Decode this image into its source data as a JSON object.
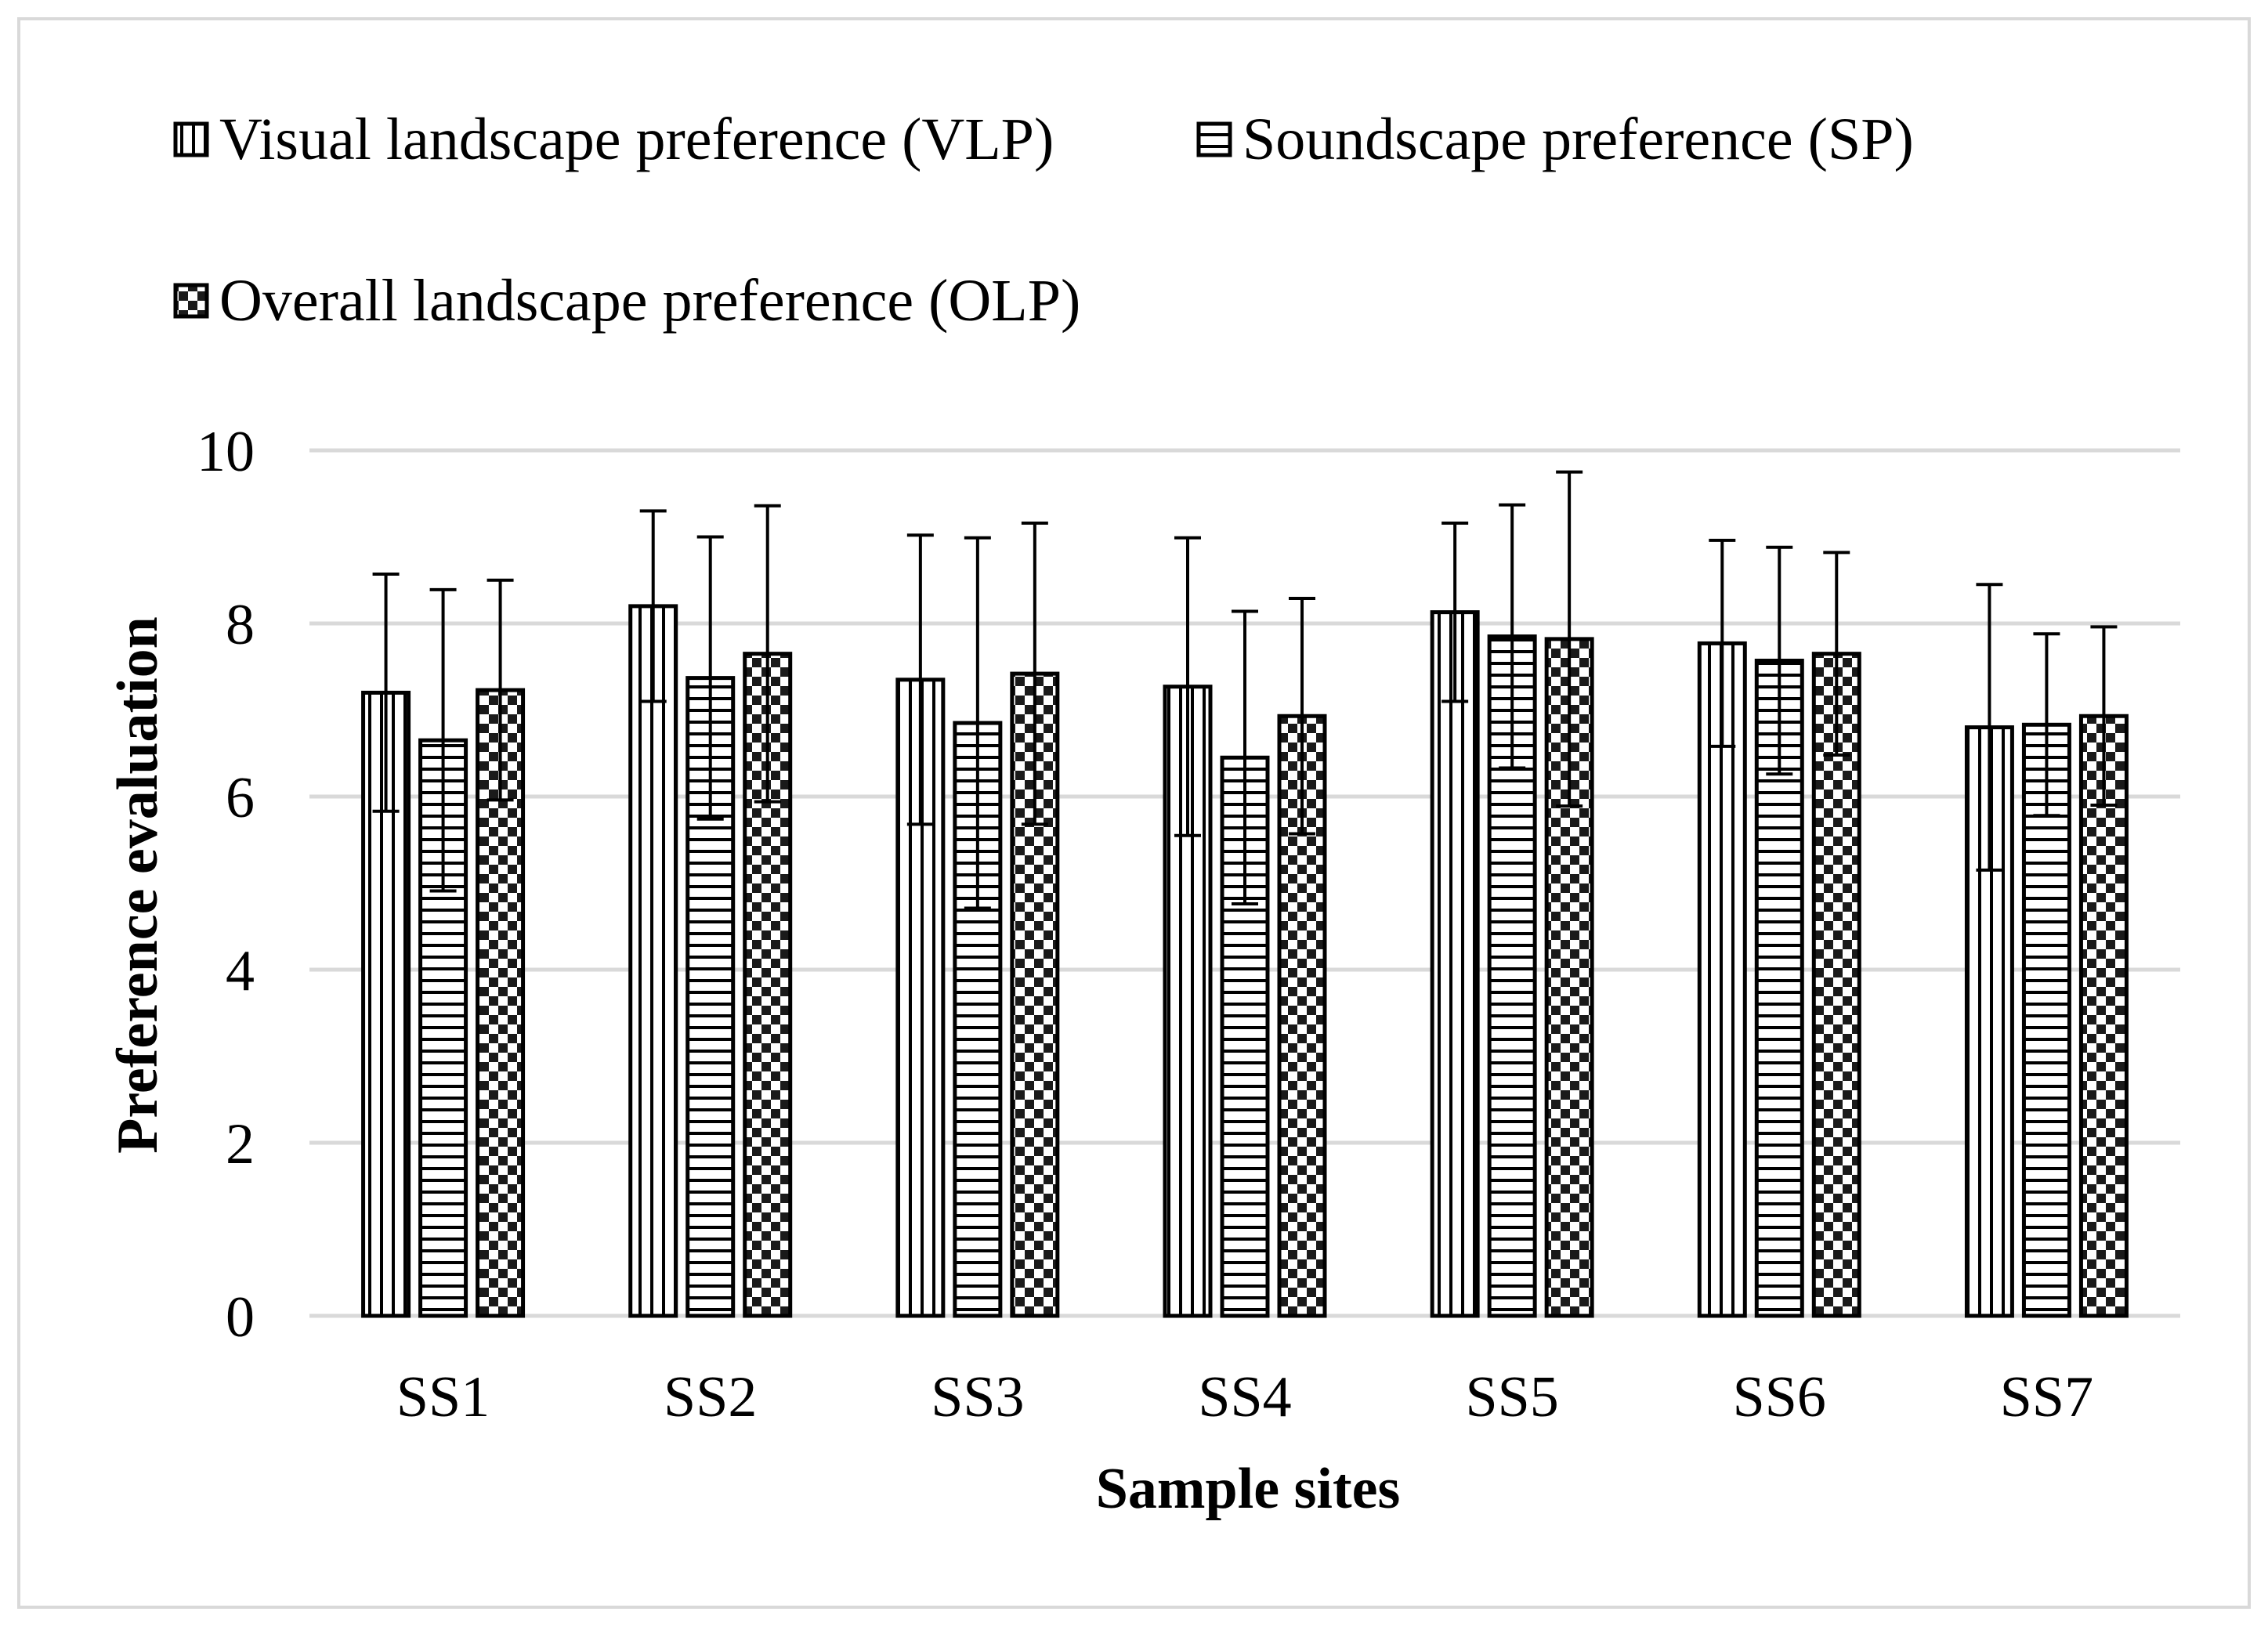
{
  "chart_data": {
    "type": "bar",
    "title": "",
    "xlabel": "Sample sites",
    "ylabel": "Preference evaluation",
    "categories": [
      "SS1",
      "SS2",
      "SS3",
      "SS4",
      "SS5",
      "SS6",
      "SS7"
    ],
    "ylim": [
      0,
      10
    ],
    "yticks": [
      0,
      2,
      4,
      6,
      8,
      10
    ],
    "grid": true,
    "legend_position": "top-left",
    "series": [
      {
        "name": "Visual landscape preference (VLP)",
        "pattern": "vertical-lines",
        "values": [
          7.2,
          8.2,
          7.35,
          7.27,
          8.13,
          7.77,
          6.8
        ],
        "errors": [
          1.37,
          1.1,
          1.67,
          1.72,
          1.03,
          1.19,
          1.65
        ]
      },
      {
        "name": "Soundscape preference (SP)",
        "pattern": "horizontal-lines",
        "values": [
          6.65,
          7.37,
          6.85,
          6.45,
          7.85,
          7.57,
          6.83
        ],
        "errors": [
          1.74,
          1.63,
          2.14,
          1.69,
          1.52,
          1.31,
          1.05
        ]
      },
      {
        "name": "Overall landscape preference (OLP)",
        "pattern": "checkerboard",
        "values": [
          7.23,
          7.65,
          7.42,
          6.93,
          7.82,
          7.65,
          6.93
        ],
        "errors": [
          1.27,
          1.71,
          1.74,
          1.36,
          1.93,
          1.17,
          1.03
        ]
      }
    ]
  },
  "colors": {
    "bar_stroke": "#000000",
    "bar_fill": "#ffffff",
    "gridline": "#d9d9d9",
    "frame": "#d9d9d9",
    "text": "#000000"
  }
}
